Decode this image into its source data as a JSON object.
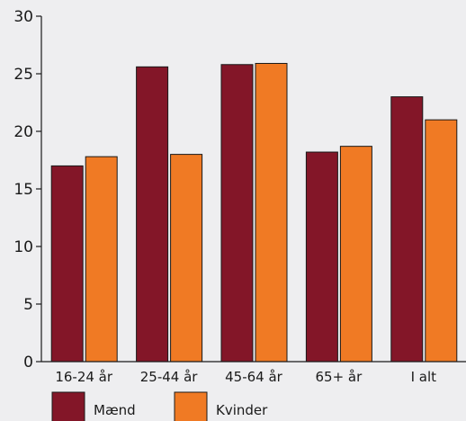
{
  "chart_data": {
    "type": "bar",
    "categories": [
      "16-24 år",
      "25-44 år",
      "45-64 år",
      "65+ år",
      "I alt"
    ],
    "series": [
      {
        "name": "Mænd",
        "values": [
          17.0,
          25.6,
          25.8,
          18.2,
          23.0
        ],
        "color": "#831628"
      },
      {
        "name": "Kvinder",
        "values": [
          17.8,
          18.0,
          25.9,
          18.7,
          21.0
        ],
        "color": "#f07a24"
      }
    ],
    "ylim": [
      0,
      30
    ],
    "yticks": [
      0,
      5,
      10,
      15,
      20,
      25,
      30
    ],
    "grid": false,
    "legend": "bottom-left",
    "background": "#eeeef0",
    "bar_outline": "#1a1a1a"
  }
}
